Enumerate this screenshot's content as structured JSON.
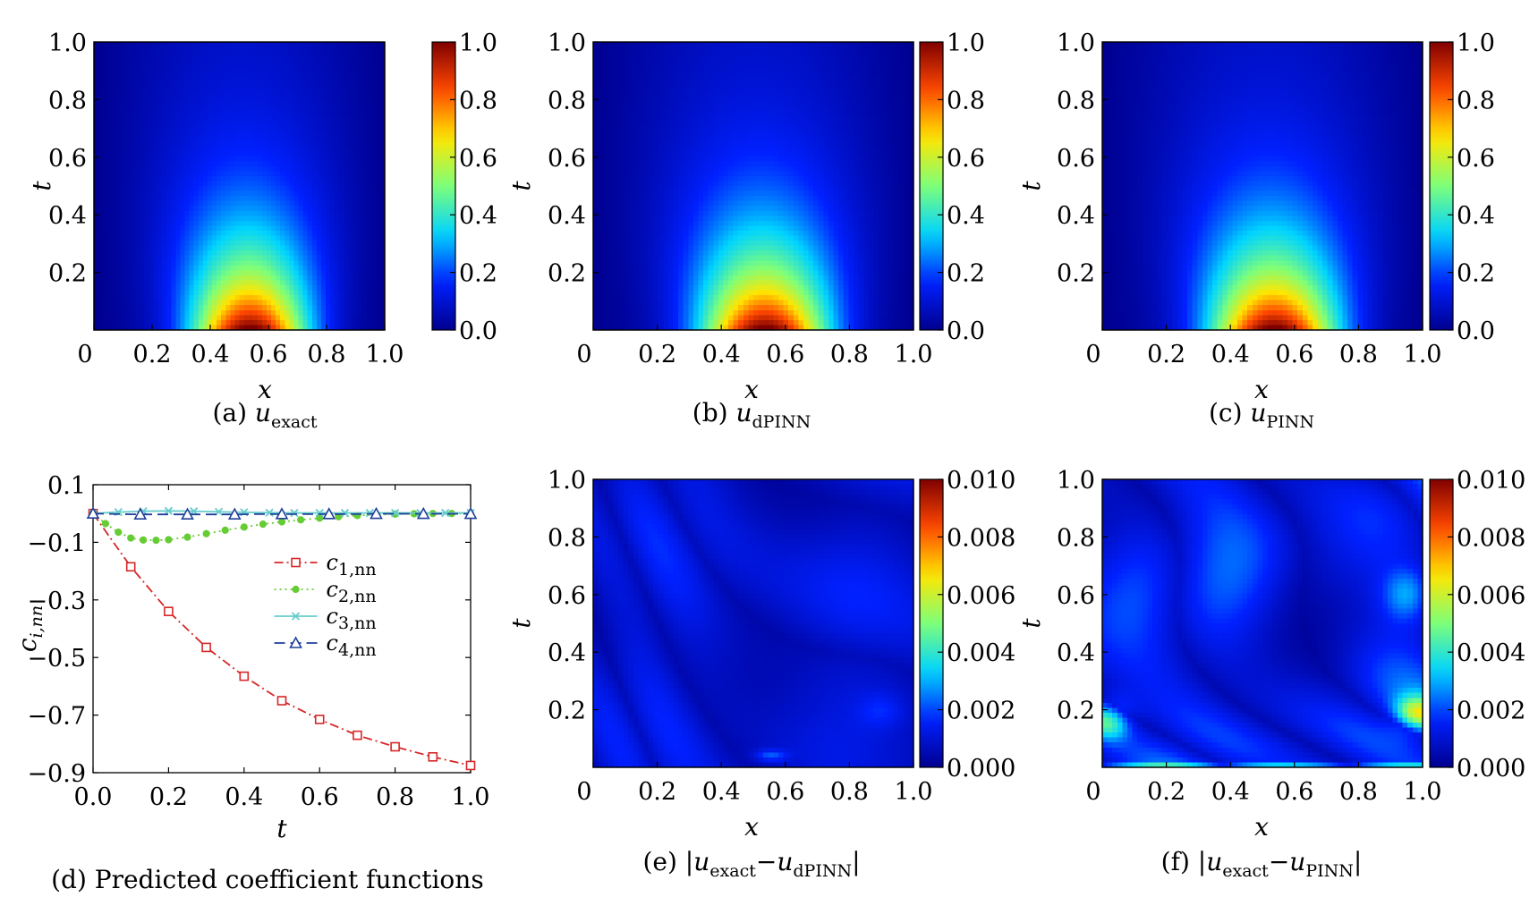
{
  "colormap": [
    "#00008f",
    "#0020ff",
    "#00d4ff",
    "#7dff7a",
    "#ffe600",
    "#ff4800",
    "#800000"
  ],
  "heatmaps": [
    {
      "panel": "a",
      "xlabel": "x",
      "ylabel": "t",
      "xticks": [
        "0",
        "0.2",
        "0.4",
        "0.6",
        "0.8",
        "1.0"
      ],
      "yticks": [
        "0.2",
        "0.4",
        "0.6",
        "0.8",
        "1.0"
      ],
      "cbar_ticks": [
        "0.0",
        "0.2",
        "0.4",
        "0.6",
        "0.8",
        "1.0"
      ],
      "cbar_range": [
        0,
        1
      ],
      "caption": {
        "prefix": "(a) ",
        "base": "u",
        "sub": "exact",
        "suffix": ""
      }
    },
    {
      "panel": "b",
      "xlabel": "x",
      "ylabel": "t",
      "xticks": [
        "0",
        "0.2",
        "0.4",
        "0.6",
        "0.8",
        "1.0"
      ],
      "yticks": [
        "0.2",
        "0.4",
        "0.6",
        "0.8",
        "1.0"
      ],
      "cbar_ticks": [
        "0.0",
        "0.2",
        "0.4",
        "0.6",
        "0.8",
        "1.0"
      ],
      "cbar_range": [
        0,
        1
      ],
      "caption": {
        "prefix": "(b) ",
        "base": "u",
        "sub": "dPINN",
        "suffix": ""
      }
    },
    {
      "panel": "c",
      "xlabel": "x",
      "ylabel": "t",
      "xticks": [
        "0",
        "0.2",
        "0.4",
        "0.6",
        "0.8",
        "1.0"
      ],
      "yticks": [
        "0.2",
        "0.4",
        "0.6",
        "0.8",
        "1.0"
      ],
      "cbar_ticks": [
        "0.0",
        "0.2",
        "0.4",
        "0.6",
        "0.8",
        "1.0"
      ],
      "cbar_range": [
        0,
        1
      ],
      "caption": {
        "prefix": "(c) ",
        "base": "u",
        "sub": "PINN",
        "suffix": ""
      }
    },
    {
      "panel": "e",
      "xlabel": "x",
      "ylabel": "t",
      "xticks": [
        "0",
        "0.2",
        "0.4",
        "0.6",
        "0.8",
        "1.0"
      ],
      "yticks": [
        "0.2",
        "0.4",
        "0.6",
        "0.8",
        "1.0"
      ],
      "cbar_ticks": [
        "0.000",
        "0.002",
        "0.004",
        "0.006",
        "0.008",
        "0.010"
      ],
      "cbar_range": [
        0,
        0.01
      ],
      "caption": {
        "prefix": "(e) |",
        "base": "u",
        "sub": "exact",
        "mid": "−",
        "base2": "u",
        "sub2": "dPINN",
        "suffix": "|"
      }
    },
    {
      "panel": "f",
      "xlabel": "x",
      "ylabel": "t",
      "xticks": [
        "0",
        "0.2",
        "0.4",
        "0.6",
        "0.8",
        "1.0"
      ],
      "yticks": [
        "0.2",
        "0.4",
        "0.6",
        "0.8",
        "1.0"
      ],
      "cbar_ticks": [
        "0.000",
        "0.002",
        "0.004",
        "0.006",
        "0.008",
        "0.010"
      ],
      "cbar_range": [
        0,
        0.01
      ],
      "caption": {
        "prefix": "(f) |",
        "base": "u",
        "sub": "exact",
        "mid": "−",
        "base2": "u",
        "sub2": "PINN",
        "suffix": "|"
      }
    }
  ],
  "chart_data": {
    "type": "line",
    "panel": "d",
    "xlabel": "t",
    "ylabel": {
      "base": "c",
      "sub": "i,nn"
    },
    "xlim": [
      0.0,
      1.0
    ],
    "ylim": [
      -0.9,
      0.1
    ],
    "xticks": [
      "0.0",
      "0.2",
      "0.4",
      "0.6",
      "0.8",
      "1.0"
    ],
    "yticks": [
      "0.1",
      "−0.1",
      "−0.3",
      "−0.5",
      "−0.7",
      "−0.9"
    ],
    "legend_position": "center-right",
    "caption": "(d) Predicted coefficient functions",
    "series": [
      {
        "name": "c",
        "sub": "1,nn",
        "color": "#d62728",
        "marker": "square",
        "dash": "10,4,2,4",
        "x": [
          0.0,
          0.1,
          0.2,
          0.3,
          0.4,
          0.5,
          0.6,
          0.7,
          0.8,
          0.9,
          1.0
        ],
        "y": [
          0.0,
          -0.185,
          -0.34,
          -0.465,
          -0.565,
          -0.65,
          -0.715,
          -0.77,
          -0.81,
          -0.845,
          -0.875
        ]
      },
      {
        "name": "c",
        "sub": "2,nn",
        "color": "#66cc33",
        "marker": "circle",
        "dash": "2,4",
        "x": [
          0.0,
          0.033,
          0.067,
          0.1,
          0.133,
          0.167,
          0.2,
          0.25,
          0.3,
          0.35,
          0.4,
          0.45,
          0.5,
          0.55,
          0.6,
          0.65,
          0.7,
          0.75,
          0.8,
          0.85,
          0.9,
          0.95,
          1.0
        ],
        "y": [
          0.0,
          -0.035,
          -0.065,
          -0.085,
          -0.092,
          -0.093,
          -0.091,
          -0.082,
          -0.07,
          -0.058,
          -0.047,
          -0.037,
          -0.029,
          -0.022,
          -0.016,
          -0.011,
          -0.007,
          -0.004,
          -0.002,
          -0.001,
          0.0,
          0.0,
          0.0
        ]
      },
      {
        "name": "c",
        "sub": "3,nn",
        "color": "#66cccc",
        "marker": "x",
        "dash": "",
        "x": [
          0.0,
          0.067,
          0.133,
          0.2,
          0.267,
          0.333,
          0.4,
          0.467,
          0.533,
          0.6,
          0.667,
          0.733,
          0.8,
          0.867,
          0.933,
          1.0
        ],
        "y": [
          0.0,
          0.005,
          0.008,
          0.009,
          0.008,
          0.006,
          0.004,
          0.003,
          0.002,
          0.002,
          0.002,
          0.002,
          0.002,
          0.002,
          0.002,
          0.002
        ]
      },
      {
        "name": "c",
        "sub": "4,nn",
        "color": "#1f3f99",
        "marker": "triangle",
        "dash": "12,6",
        "x": [
          0.0,
          0.0625,
          0.125,
          0.1875,
          0.25,
          0.3125,
          0.375,
          0.4375,
          0.5,
          0.5625,
          0.625,
          0.6875,
          0.75,
          0.8125,
          0.875,
          0.9375,
          1.0
        ],
        "y": [
          0.0,
          -0.002,
          -0.003,
          -0.003,
          -0.003,
          -0.003,
          -0.003,
          -0.002,
          -0.002,
          -0.002,
          -0.002,
          -0.002,
          -0.001,
          -0.001,
          -0.001,
          -0.001,
          -0.001
        ],
        "marker_every": 2
      }
    ]
  }
}
